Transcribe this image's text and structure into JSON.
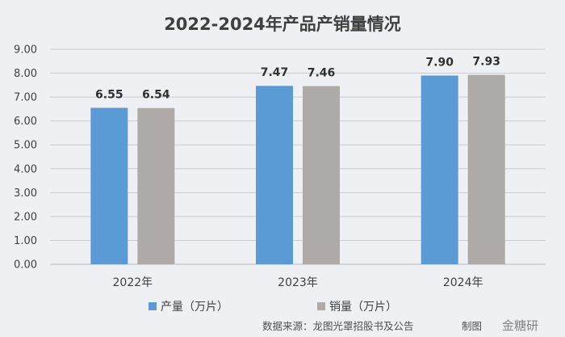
{
  "chart_data": {
    "type": "bar",
    "title": "2022-2024年产品产销量情况",
    "categories": [
      "2022年",
      "2023年",
      "2024年"
    ],
    "series": [
      {
        "name": "产量（万片）",
        "values": [
          6.55,
          7.47,
          7.9
        ],
        "labels": [
          "6.55",
          "7.47",
          "7.90"
        ],
        "color": "#5b9bd5"
      },
      {
        "name": "销量（万片）",
        "values": [
          6.54,
          7.46,
          7.93
        ],
        "labels": [
          "6.54",
          "7.46",
          "7.93"
        ],
        "color": "#aeaaa8"
      }
    ],
    "ylim": [
      0,
      9
    ],
    "yticks": [
      "0.00",
      "1.00",
      "2.00",
      "3.00",
      "4.00",
      "5.00",
      "6.00",
      "7.00",
      "8.00",
      "9.00"
    ],
    "grid": true,
    "legend_position": "bottom"
  },
  "footer": {
    "source": "数据来源：龙图光罩招股书及公告",
    "made_by": "制图",
    "watermark": "金糖研"
  }
}
